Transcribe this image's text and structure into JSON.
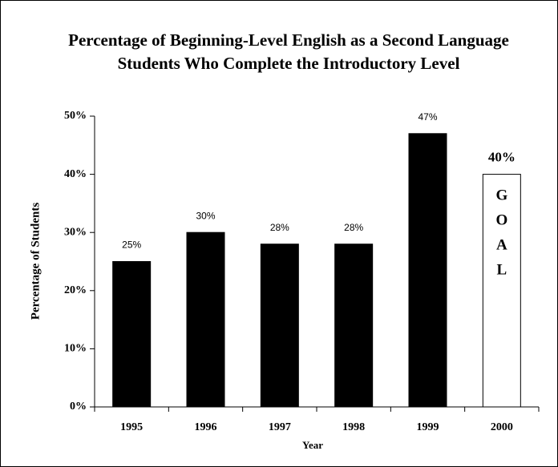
{
  "chart_data": {
    "type": "bar",
    "title": [
      "Percentage of Beginning-Level English as a Second Language",
      "Students Who Complete the Introductory Level"
    ],
    "xlabel": "Year",
    "ylabel": "Percentage of Students",
    "categories": [
      "1995",
      "1996",
      "1997",
      "1998",
      "1999",
      "2000"
    ],
    "values": [
      25,
      30,
      28,
      28,
      47,
      40
    ],
    "value_labels": [
      "25%",
      "30%",
      "28%",
      "28%",
      "47%",
      "40%"
    ],
    "colors": [
      "#000000",
      "#000000",
      "#000000",
      "#000000",
      "#000000",
      "#ffffff"
    ],
    "annotation": "GOAL",
    "ylim": [
      0,
      50
    ],
    "yticks": [
      {
        "value": 0,
        "label": "0%"
      },
      {
        "value": 10,
        "label": "10%"
      },
      {
        "value": 20,
        "label": "20%"
      },
      {
        "value": 30,
        "label": "30%"
      },
      {
        "value": 40,
        "label": "40%"
      },
      {
        "value": 50,
        "label": "50%"
      }
    ],
    "grid": false
  }
}
